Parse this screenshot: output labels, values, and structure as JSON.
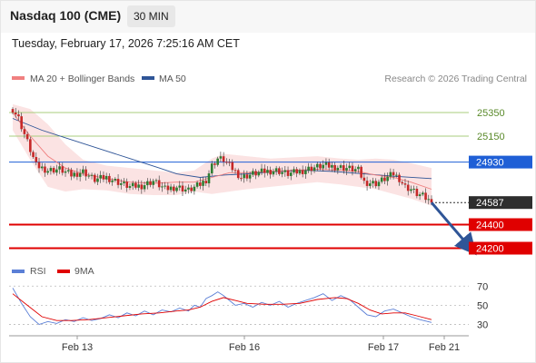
{
  "header": {
    "title": "Nasdaq 100 (CME)",
    "interval": "30 MIN",
    "datetime": "Tuesday, February 17, 2026 7:25:16 AM CET"
  },
  "legend": {
    "ma20": {
      "label": "MA 20 + Bollinger Bands",
      "color": "#f08080"
    },
    "ma50": {
      "label": "MA 50",
      "color": "#2f5597"
    },
    "research": "Research © 2026 Trading Central"
  },
  "rsi_legend": {
    "rsi": {
      "label": "RSI",
      "color": "#5b7fd6"
    },
    "ma9": {
      "label": "9MA",
      "color": "#e00000"
    }
  },
  "chart_data": [
    {
      "type": "candlestick",
      "title": "Nasdaq 100 (CME)",
      "timeframe": "30 MIN",
      "x_tick_labels": [
        "Feb 13",
        "Feb 16",
        "Feb 17",
        "Feb 21"
      ],
      "y_range": [
        24150,
        25450
      ],
      "last_price": 24587,
      "horizontal_levels": [
        {
          "value": 25350,
          "label": "25350",
          "kind": "resistance",
          "color": "#a8cc7c"
        },
        {
          "value": 25150,
          "label": "25150",
          "kind": "resistance",
          "color": "#a8cc7c"
        },
        {
          "value": 24930,
          "label": "24930",
          "kind": "pivot",
          "color": "#1f5fd6"
        },
        {
          "value": 24587,
          "label": "24587",
          "kind": "last",
          "color": "#2e2e2e"
        },
        {
          "value": 24400,
          "label": "24400",
          "kind": "support",
          "color": "#e00000"
        },
        {
          "value": 24200,
          "label": "24200",
          "kind": "support",
          "color": "#e00000"
        }
      ],
      "close_path": [
        [
          0,
          25380
        ],
        [
          2,
          25300
        ],
        [
          5,
          25100
        ],
        [
          8,
          24900
        ],
        [
          12,
          24860
        ],
        [
          16,
          24870
        ],
        [
          20,
          24820
        ],
        [
          24,
          24850
        ],
        [
          28,
          24780
        ],
        [
          32,
          24800
        ],
        [
          36,
          24760
        ],
        [
          40,
          24720
        ],
        [
          44,
          24730
        ],
        [
          48,
          24770
        ],
        [
          52,
          24700
        ],
        [
          56,
          24720
        ],
        [
          60,
          24690
        ],
        [
          64,
          24740
        ],
        [
          66,
          24780
        ],
        [
          68,
          24900
        ],
        [
          70,
          24960
        ],
        [
          72,
          24950
        ],
        [
          74,
          24900
        ],
        [
          78,
          24800
        ],
        [
          82,
          24830
        ],
        [
          86,
          24850
        ],
        [
          90,
          24860
        ],
        [
          94,
          24830
        ],
        [
          98,
          24850
        ],
        [
          102,
          24880
        ],
        [
          106,
          24900
        ],
        [
          110,
          24890
        ],
        [
          114,
          24880
        ],
        [
          118,
          24860
        ],
        [
          120,
          24760
        ],
        [
          124,
          24750
        ],
        [
          128,
          24800
        ],
        [
          130,
          24830
        ],
        [
          132,
          24790
        ],
        [
          134,
          24720
        ],
        [
          136,
          24700
        ],
        [
          138,
          24660
        ],
        [
          140,
          24640
        ],
        [
          143,
          24587
        ]
      ],
      "ma20": [
        [
          0,
          25350
        ],
        [
          6,
          25150
        ],
        [
          12,
          24980
        ],
        [
          18,
          24880
        ],
        [
          24,
          24830
        ],
        [
          32,
          24790
        ],
        [
          40,
          24760
        ],
        [
          48,
          24750
        ],
        [
          56,
          24760
        ],
        [
          62,
          24760
        ],
        [
          68,
          24800
        ],
        [
          74,
          24840
        ],
        [
          80,
          24840
        ],
        [
          88,
          24850
        ],
        [
          96,
          24860
        ],
        [
          104,
          24870
        ],
        [
          112,
          24860
        ],
        [
          118,
          24850
        ],
        [
          124,
          24820
        ],
        [
          130,
          24800
        ],
        [
          136,
          24760
        ],
        [
          143,
          24700
        ]
      ],
      "ma50": [
        [
          0,
          25300
        ],
        [
          10,
          25200
        ],
        [
          20,
          25120
        ],
        [
          30,
          25040
        ],
        [
          40,
          24960
        ],
        [
          50,
          24880
        ],
        [
          56,
          24830
        ],
        [
          64,
          24800
        ],
        [
          72,
          24820
        ],
        [
          80,
          24830
        ],
        [
          90,
          24850
        ],
        [
          100,
          24860
        ],
        [
          110,
          24850
        ],
        [
          120,
          24830
        ],
        [
          130,
          24810
        ],
        [
          143,
          24790
        ]
      ],
      "bollinger_band": {
        "upper": [
          [
            0,
            25420
          ],
          [
            6,
            25380
          ],
          [
            12,
            25250
          ],
          [
            18,
            25080
          ],
          [
            24,
            24950
          ],
          [
            32,
            24900
          ],
          [
            40,
            24880
          ],
          [
            48,
            24860
          ],
          [
            56,
            24840
          ],
          [
            62,
            24860
          ],
          [
            68,
            24960
          ],
          [
            72,
            25000
          ],
          [
            80,
            24980
          ],
          [
            88,
            24960
          ],
          [
            96,
            24970
          ],
          [
            104,
            24980
          ],
          [
            112,
            24960
          ],
          [
            118,
            24950
          ],
          [
            124,
            24960
          ],
          [
            130,
            24950
          ],
          [
            136,
            24920
          ],
          [
            143,
            24880
          ]
        ],
        "lower": [
          [
            0,
            25200
          ],
          [
            6,
            24950
          ],
          [
            12,
            24720
          ],
          [
            18,
            24680
          ],
          [
            24,
            24700
          ],
          [
            32,
            24690
          ],
          [
            40,
            24660
          ],
          [
            48,
            24650
          ],
          [
            56,
            24650
          ],
          [
            62,
            24680
          ],
          [
            68,
            24660
          ],
          [
            74,
            24680
          ],
          [
            80,
            24700
          ],
          [
            88,
            24720
          ],
          [
            96,
            24740
          ],
          [
            104,
            24760
          ],
          [
            112,
            24740
          ],
          [
            118,
            24720
          ],
          [
            124,
            24700
          ],
          [
            130,
            24660
          ],
          [
            136,
            24620
          ],
          [
            143,
            24560
          ]
        ]
      },
      "projection_arrow": {
        "from": [
          143,
          24587
        ],
        "to": [
          156,
          24210
        ]
      }
    },
    {
      "type": "line",
      "title": "RSI",
      "y_range": [
        20,
        75
      ],
      "y_tick_labels": [
        "70",
        "50",
        "30"
      ],
      "y_ticks": [
        70,
        50,
        30
      ],
      "series": [
        {
          "name": "RSI",
          "color": "#5b7fd6",
          "values": [
            [
              0,
              68
            ],
            [
              3,
              52
            ],
            [
              6,
              38
            ],
            [
              9,
              30
            ],
            [
              12,
              33
            ],
            [
              15,
              31
            ],
            [
              18,
              35
            ],
            [
              21,
              33
            ],
            [
              24,
              37
            ],
            [
              27,
              34
            ],
            [
              30,
              36
            ],
            [
              33,
              40
            ],
            [
              36,
              37
            ],
            [
              39,
              42
            ],
            [
              42,
              39
            ],
            [
              45,
              44
            ],
            [
              48,
              40
            ],
            [
              51,
              45
            ],
            [
              54,
              43
            ],
            [
              57,
              47
            ],
            [
              60,
              44
            ],
            [
              62,
              50
            ],
            [
              64,
              48
            ],
            [
              66,
              57
            ],
            [
              68,
              60
            ],
            [
              70,
              64
            ],
            [
              72,
              60
            ],
            [
              74,
              55
            ],
            [
              76,
              50
            ],
            [
              79,
              52
            ],
            [
              82,
              48
            ],
            [
              85,
              53
            ],
            [
              88,
              50
            ],
            [
              91,
              54
            ],
            [
              94,
              48
            ],
            [
              97,
              52
            ],
            [
              100,
              55
            ],
            [
              103,
              58
            ],
            [
              106,
              62
            ],
            [
              109,
              55
            ],
            [
              112,
              60
            ],
            [
              115,
              56
            ],
            [
              118,
              48
            ],
            [
              121,
              40
            ],
            [
              124,
              38
            ],
            [
              127,
              44
            ],
            [
              130,
              46
            ],
            [
              133,
              42
            ],
            [
              136,
              38
            ],
            [
              139,
              35
            ],
            [
              143,
              32
            ]
          ]
        },
        {
          "name": "9MA",
          "color": "#e00000",
          "values": [
            [
              0,
              62
            ],
            [
              5,
              50
            ],
            [
              10,
              38
            ],
            [
              15,
              34
            ],
            [
              20,
              34
            ],
            [
              26,
              35
            ],
            [
              32,
              37
            ],
            [
              38,
              39
            ],
            [
              44,
              41
            ],
            [
              50,
              42
            ],
            [
              56,
              44
            ],
            [
              60,
              45
            ],
            [
              64,
              48
            ],
            [
              68,
              54
            ],
            [
              72,
              58
            ],
            [
              76,
              55
            ],
            [
              80,
              52
            ],
            [
              86,
              51
            ],
            [
              92,
              51
            ],
            [
              98,
              52
            ],
            [
              104,
              56
            ],
            [
              110,
              58
            ],
            [
              114,
              57
            ],
            [
              118,
              52
            ],
            [
              122,
              45
            ],
            [
              126,
              41
            ],
            [
              130,
              42
            ],
            [
              134,
              42
            ],
            [
              138,
              39
            ],
            [
              143,
              35
            ]
          ]
        }
      ]
    }
  ]
}
